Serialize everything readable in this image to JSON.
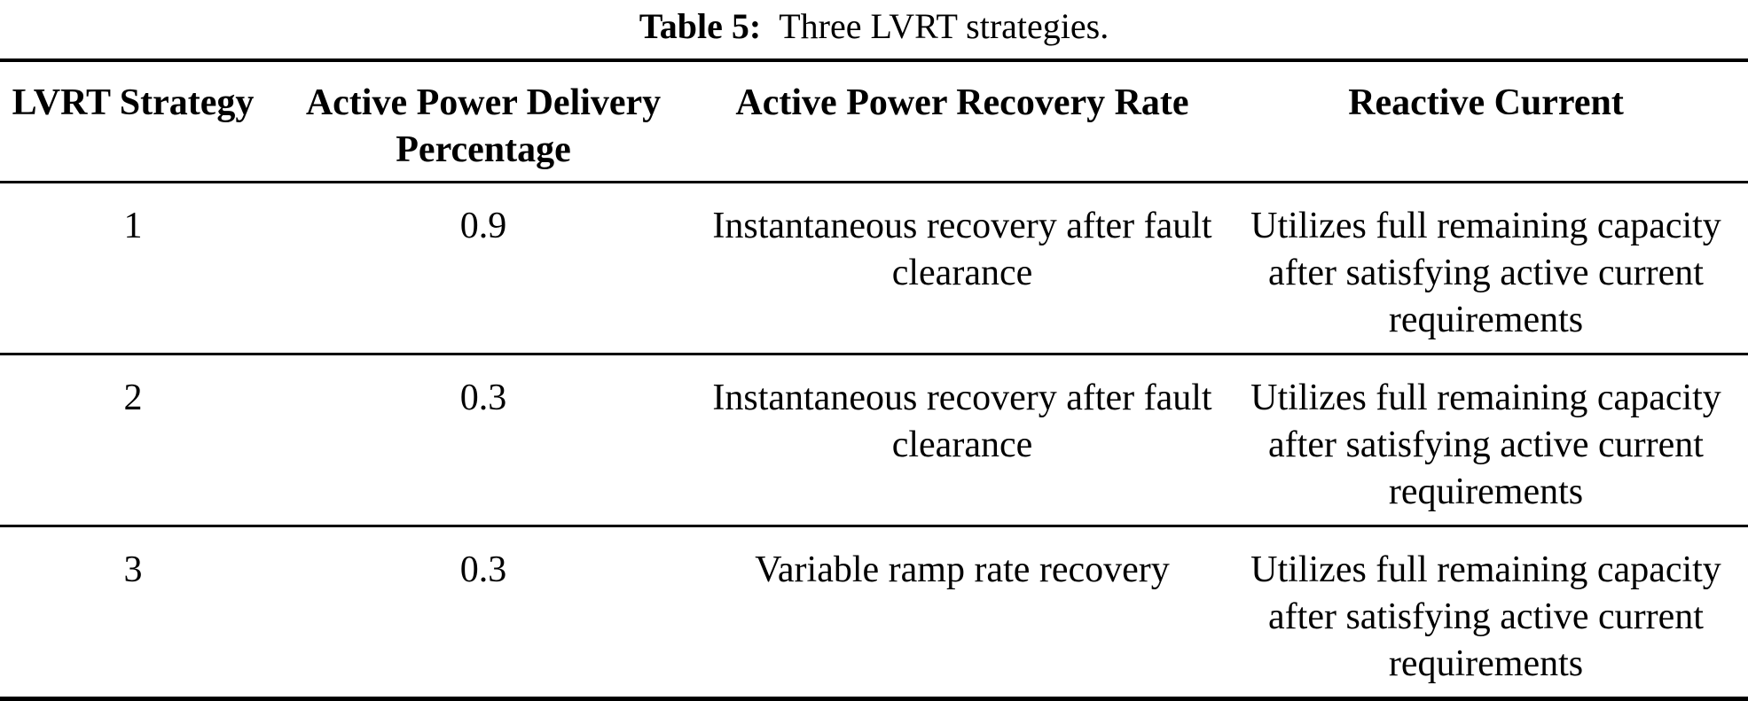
{
  "caption": {
    "label": "Table 5:",
    "text": "Three LVRT strategies."
  },
  "table": {
    "headers": [
      {
        "label": "LVRT Strategy"
      },
      {
        "label": "Active Power Delivery Percentage"
      },
      {
        "label": "Active Power Recovery Rate"
      },
      {
        "label": "Reactive Current"
      }
    ],
    "rows": [
      {
        "cells": [
          "1",
          "0.9",
          "Instantaneous recovery after fault clearance",
          "Utilizes full remaining capacity after satisfying active current requirements"
        ]
      },
      {
        "cells": [
          "2",
          "0.3",
          "Instantaneous recovery after fault clearance",
          "Utilizes full remaining capacity after satisfying active current requirements"
        ]
      },
      {
        "cells": [
          "3",
          "0.3",
          "Variable ramp rate recovery",
          "Utilizes full remaining capacity after satisfying active current requirements"
        ]
      }
    ]
  }
}
